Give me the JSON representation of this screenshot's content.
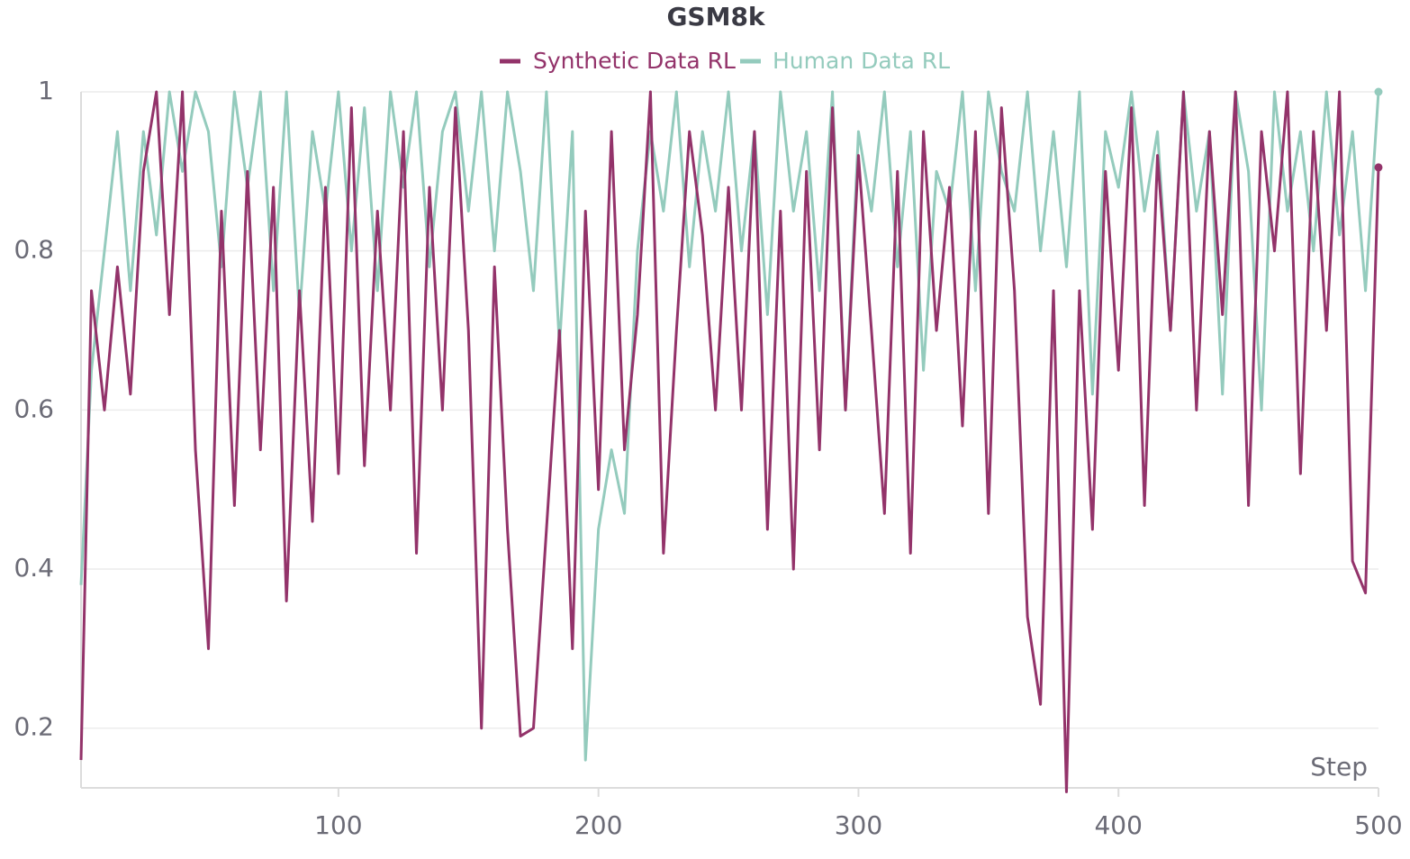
{
  "chart_data": {
    "type": "line",
    "title": "GSM8k",
    "x_label": "Step",
    "x": [
      1,
      5,
      10,
      15,
      20,
      25,
      30,
      35,
      40,
      45,
      50,
      55,
      60,
      65,
      70,
      75,
      80,
      85,
      90,
      95,
      100,
      105,
      110,
      115,
      120,
      125,
      130,
      135,
      140,
      145,
      150,
      155,
      160,
      165,
      170,
      175,
      180,
      185,
      190,
      195,
      200,
      205,
      210,
      215,
      220,
      225,
      230,
      235,
      240,
      245,
      250,
      255,
      260,
      265,
      270,
      275,
      280,
      285,
      290,
      295,
      300,
      305,
      310,
      315,
      320,
      325,
      330,
      335,
      340,
      345,
      350,
      355,
      360,
      365,
      370,
      375,
      380,
      385,
      390,
      395,
      400,
      405,
      410,
      415,
      420,
      425,
      430,
      435,
      440,
      445,
      450,
      455,
      460,
      465,
      470,
      475,
      480,
      485,
      490,
      495,
      500
    ],
    "series": [
      {
        "name": "Synthetic Data RL",
        "color": "#93336a",
        "values": [
          0.16,
          0.75,
          0.6,
          0.78,
          0.62,
          0.9,
          1.0,
          0.72,
          1.0,
          0.55,
          0.3,
          0.85,
          0.48,
          0.9,
          0.55,
          0.88,
          0.36,
          0.75,
          0.46,
          0.88,
          0.52,
          0.98,
          0.53,
          0.85,
          0.6,
          0.95,
          0.42,
          0.88,
          0.6,
          0.98,
          0.7,
          0.2,
          0.78,
          0.45,
          0.19,
          0.2,
          0.45,
          0.7,
          0.3,
          0.85,
          0.5,
          0.95,
          0.55,
          0.72,
          1.0,
          0.42,
          0.7,
          0.95,
          0.82,
          0.6,
          0.88,
          0.6,
          0.95,
          0.45,
          0.85,
          0.4,
          0.9,
          0.55,
          0.98,
          0.6,
          0.92,
          0.7,
          0.47,
          0.9,
          0.42,
          0.95,
          0.7,
          0.88,
          0.58,
          0.95,
          0.47,
          0.98,
          0.75,
          0.34,
          0.23,
          0.75,
          0.12,
          0.75,
          0.45,
          0.9,
          0.65,
          0.98,
          0.48,
          0.92,
          0.7,
          1.0,
          0.6,
          0.95,
          0.72,
          1.0,
          0.48,
          0.95,
          0.8,
          1.0,
          0.52,
          0.95,
          0.7,
          1.0,
          0.41,
          0.37,
          0.905
        ]
      },
      {
        "name": "Human Data RL",
        "color": "#94cbbd",
        "values": [
          0.38,
          0.65,
          0.8,
          0.95,
          0.75,
          0.95,
          0.82,
          1.0,
          0.9,
          1.0,
          0.95,
          0.78,
          1.0,
          0.88,
          1.0,
          0.75,
          1.0,
          0.72,
          0.95,
          0.85,
          1.0,
          0.8,
          0.98,
          0.75,
          1.0,
          0.88,
          1.0,
          0.78,
          0.95,
          1.0,
          0.85,
          1.0,
          0.8,
          1.0,
          0.9,
          0.75,
          1.0,
          0.68,
          0.95,
          0.16,
          0.45,
          0.55,
          0.47,
          0.8,
          0.95,
          0.85,
          1.0,
          0.78,
          0.95,
          0.85,
          1.0,
          0.8,
          0.95,
          0.72,
          1.0,
          0.85,
          0.95,
          0.75,
          1.0,
          0.6,
          0.95,
          0.85,
          1.0,
          0.78,
          0.95,
          0.65,
          0.9,
          0.85,
          1.0,
          0.75,
          1.0,
          0.9,
          0.85,
          1.0,
          0.8,
          0.95,
          0.78,
          1.0,
          0.62,
          0.95,
          0.88,
          1.0,
          0.85,
          0.95,
          0.7,
          1.0,
          0.85,
          0.95,
          0.62,
          1.0,
          0.9,
          0.6,
          1.0,
          0.85,
          0.95,
          0.8,
          1.0,
          0.82,
          0.95,
          0.75,
          1.0
        ]
      }
    ],
    "xlim": [
      1,
      500
    ],
    "ylim": [
      0.125,
      1
    ],
    "xticks": [
      100,
      200,
      300,
      400,
      500
    ],
    "yticks": [
      0.2,
      0.4,
      0.6,
      0.8,
      1
    ],
    "grid": true
  }
}
